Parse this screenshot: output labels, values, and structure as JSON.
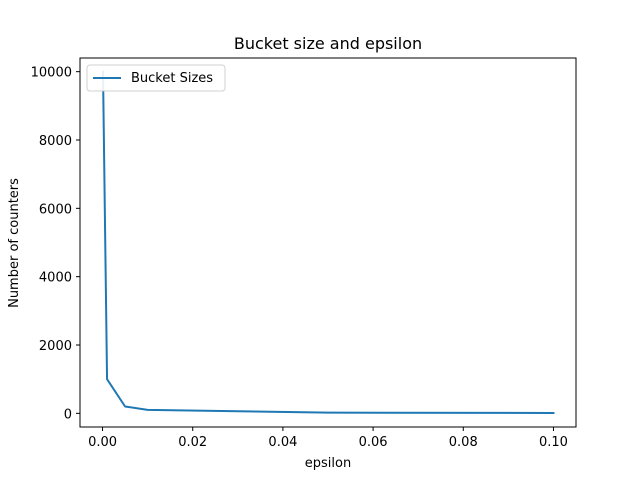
{
  "chart_data": {
    "type": "line",
    "title": "Bucket size and epsilon",
    "xlabel": "epsilon",
    "ylabel": "Number of counters",
    "xlim": [
      -0.005,
      0.105
    ],
    "ylim": [
      -400,
      10400
    ],
    "xticks": [
      0.0,
      0.02,
      0.04,
      0.06,
      0.08,
      0.1
    ],
    "xtick_labels": [
      "0.00",
      "0.02",
      "0.04",
      "0.06",
      "0.08",
      "0.10"
    ],
    "yticks": [
      0,
      2000,
      4000,
      6000,
      8000,
      10000
    ],
    "ytick_labels": [
      "0",
      "2000",
      "4000",
      "6000",
      "8000",
      "10000"
    ],
    "grid": false,
    "legend_position": "top-left",
    "series": [
      {
        "name": "Bucket Sizes",
        "color": "#1f77b4",
        "x": [
          0.0001,
          0.001,
          0.005,
          0.01,
          0.05,
          0.1
        ],
        "y": [
          10000,
          1000,
          200,
          100,
          20,
          10
        ]
      }
    ]
  }
}
